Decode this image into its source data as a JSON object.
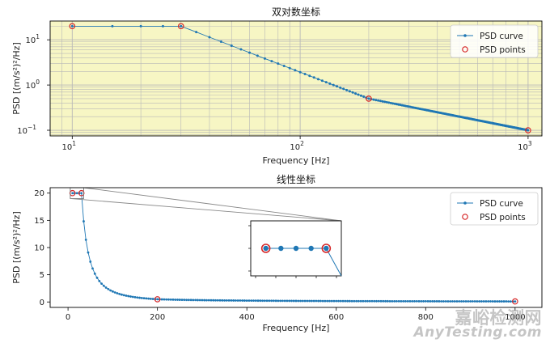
{
  "colors": {
    "curve": "#1f77b4",
    "points": "#d62728",
    "log_bg": "#f7f6c4",
    "grid": "#b8b8b8"
  },
  "chart_data": [
    {
      "type": "line",
      "title": "双对数坐标",
      "xlabel": "Frequency [Hz]",
      "ylabel": "PSD [(m/s²)²/Hz]",
      "xscale": "log",
      "yscale": "log",
      "xlim": [
        8,
        1150
      ],
      "ylim": [
        0.075,
        26
      ],
      "x_ticks": [
        {
          "v": 10,
          "b": "10",
          "e": "1"
        },
        {
          "v": 100,
          "b": "10",
          "e": "2"
        },
        {
          "v": 1000,
          "b": "10",
          "e": "3"
        }
      ],
      "y_ticks": [
        {
          "v": 0.1,
          "b": "10",
          "e": "−1"
        },
        {
          "v": 1,
          "b": "10",
          "e": "0"
        },
        {
          "v": 10,
          "b": "10",
          "e": "1"
        }
      ],
      "grid": "major and minor",
      "background": "light yellow",
      "legend_position": "upper right",
      "legend": [
        "PSD curve",
        "PSD points"
      ],
      "series": [
        {
          "name": "PSD curve",
          "type": "line",
          "style": "line with dot markers",
          "x": [
            10,
            15,
            20,
            25,
            30,
            200,
            1000
          ],
          "y": [
            20,
            20,
            20,
            20,
            20,
            0.5,
            0.1
          ]
        },
        {
          "name": "PSD points",
          "type": "scatter",
          "style": "open red circles",
          "x": [
            10,
            30,
            200,
            1000
          ],
          "y": [
            20,
            20,
            0.5,
            0.1
          ]
        }
      ]
    },
    {
      "type": "line",
      "title": "线性坐标",
      "xlabel": "Frequency [Hz]",
      "ylabel": "PSD [(m/s²)²/Hz]",
      "xscale": "linear",
      "yscale": "linear",
      "xlim": [
        -40,
        1060
      ],
      "ylim": [
        -1,
        21
      ],
      "x_ticks": [
        "0",
        "200",
        "400",
        "600",
        "800",
        "1000"
      ],
      "y_ticks": [
        "0",
        "5",
        "10",
        "15",
        "20"
      ],
      "grid": "off",
      "legend_position": "upper right",
      "legend": [
        "PSD curve",
        "PSD points"
      ],
      "inset": {
        "xlim": [
          5,
          35
        ],
        "ylim": [
          19,
          21
        ],
        "position": "center",
        "connected_to": "region x 5–35, y 19–21"
      },
      "series": [
        {
          "name": "PSD curve",
          "type": "line",
          "style": "line with dot markers",
          "x": [
            10,
            15,
            20,
            25,
            30,
            200,
            1000
          ],
          "y": [
            20,
            20,
            20,
            20,
            20,
            0.5,
            0.1
          ]
        },
        {
          "name": "PSD points",
          "type": "scatter",
          "style": "open red circles",
          "x": [
            10,
            30,
            200,
            1000
          ],
          "y": [
            20,
            20,
            0.5,
            0.1
          ]
        }
      ]
    }
  ],
  "watermark": {
    "line1": "嘉峪检测网",
    "line2": "AnyTesting.com"
  }
}
